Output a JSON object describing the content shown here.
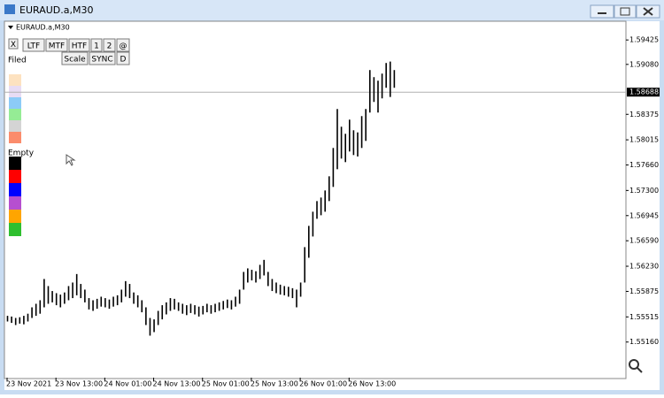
{
  "window": {
    "title": "EURAUD.a,M30"
  },
  "chart_label": "EURAUD.a,M30",
  "toolbar": {
    "row1": [
      "X",
      "LTF",
      "MTF",
      "HTF",
      "1",
      "2",
      "@"
    ],
    "row2": [
      "Scale",
      "SYNC",
      "D"
    ]
  },
  "palette": {
    "filled_label": "Filed",
    "empty_label": "Empty"
  },
  "chart_data": {
    "type": "ohlc",
    "color": "#000000",
    "high": [
      1.5553,
      1.5552,
      1.555,
      1.5551,
      1.5553,
      1.5556,
      1.5565,
      1.557,
      1.5575,
      1.5605,
      1.5595,
      1.5588,
      1.5585,
      1.5583,
      1.5586,
      1.5595,
      1.56,
      1.5612,
      1.5598,
      1.559,
      1.5578,
      1.5575,
      1.5577,
      1.558,
      1.5578,
      1.5576,
      1.558,
      1.5582,
      1.559,
      1.5602,
      1.5598,
      1.5586,
      1.5582,
      1.5575,
      1.5565,
      1.555,
      1.5548,
      1.556,
      1.5568,
      1.5572,
      1.5578,
      1.5577,
      1.5572,
      1.557,
      1.5568,
      1.557,
      1.5568,
      1.5566,
      1.5567,
      1.557,
      1.5568,
      1.557,
      1.5572,
      1.5574,
      1.5576,
      1.5575,
      1.558,
      1.559,
      1.5615,
      1.562,
      1.5618,
      1.5616,
      1.5625,
      1.5632,
      1.5615,
      1.5605,
      1.56,
      1.5597,
      1.5595,
      1.5594,
      1.5592,
      1.559,
      1.56,
      1.565,
      1.568,
      1.57,
      1.5715,
      1.572,
      1.573,
      1.575,
      1.579,
      1.5845,
      1.582,
      1.581,
      1.583,
      1.5815,
      1.5812,
      1.5835,
      1.5845,
      1.59,
      1.589,
      1.5885,
      1.5895,
      1.591,
      1.5912,
      1.59
    ],
    "low": [
      1.5545,
      1.5543,
      1.554,
      1.5542,
      1.5541,
      1.5545,
      1.555,
      1.5553,
      1.5556,
      1.5565,
      1.557,
      1.5572,
      1.5568,
      1.5565,
      1.557,
      1.5575,
      1.5578,
      1.5582,
      1.5578,
      1.5572,
      1.5562,
      1.556,
      1.5563,
      1.5566,
      1.5565,
      1.5563,
      1.5566,
      1.5568,
      1.5572,
      1.558,
      1.5578,
      1.557,
      1.5565,
      1.5558,
      1.554,
      1.5525,
      1.553,
      1.554,
      1.5548,
      1.5555,
      1.556,
      1.5562,
      1.556,
      1.5556,
      1.5554,
      1.5557,
      1.5555,
      1.5552,
      1.5555,
      1.5558,
      1.5556,
      1.5558,
      1.556,
      1.5562,
      1.5564,
      1.5562,
      1.5566,
      1.557,
      1.559,
      1.56,
      1.5603,
      1.56,
      1.5605,
      1.561,
      1.5595,
      1.5588,
      1.5585,
      1.5583,
      1.5582,
      1.558,
      1.5578,
      1.5565,
      1.558,
      1.56,
      1.5635,
      1.5665,
      1.569,
      1.5695,
      1.57,
      1.5715,
      1.5735,
      1.576,
      1.5775,
      1.577,
      1.5785,
      1.578,
      1.5778,
      1.579,
      1.58,
      1.584,
      1.5855,
      1.584,
      1.586,
      1.5875,
      1.5862,
      1.5875
    ],
    "last_price": 1.58688,
    "ylim": [
      1.54657,
      1.59677
    ],
    "yticks": [
      1.59425,
      {
        "value": 1.5908,
        "label": "1.59080"
      },
      1.58375,
      1.58015,
      {
        "value": 1.5766,
        "label": "1.57660"
      },
      {
        "value": 1.573,
        "label": "1.57300"
      },
      1.56945,
      {
        "value": 1.5659,
        "label": "1.56590"
      },
      {
        "value": 1.5623,
        "label": "1.56230"
      },
      1.55875,
      1.55515,
      {
        "value": 1.5516,
        "label": "1.55160"
      }
    ],
    "xlim": [
      0,
      152
    ],
    "xticks": [
      {
        "value": 0,
        "label": "23 Nov 2021"
      },
      {
        "value": 12,
        "label": "23 Nov 13:00"
      },
      {
        "value": 24,
        "label": "24 Nov 01:00"
      },
      {
        "value": 36,
        "label": "24 Nov 13:00"
      },
      {
        "value": 48,
        "label": "25 Nov 01:00"
      },
      {
        "value": 60,
        "label": "25 Nov 13:00"
      },
      {
        "value": 72,
        "label": "26 Nov 01:00"
      },
      {
        "value": 84,
        "label": "26 Nov 13:00"
      }
    ]
  }
}
